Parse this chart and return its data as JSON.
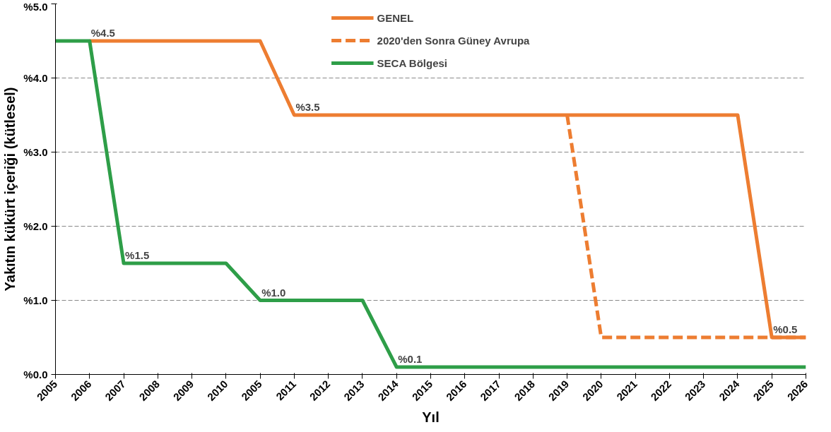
{
  "chart_data": {
    "type": "line",
    "xlabel": "Yıl",
    "ylabel": "Yakıtın kükürt içeriği (kütlesel)",
    "categories": [
      "2005",
      "2006",
      "2007",
      "2008",
      "2009",
      "2010",
      "2005",
      "2011",
      "2012",
      "2013",
      "2014",
      "2015",
      "2016",
      "2017",
      "2018",
      "2019",
      "2020",
      "2021",
      "2022",
      "2023",
      "2024",
      "2025",
      "2026"
    ],
    "ylim": [
      0,
      5
    ],
    "yticks": [
      {
        "value": 0,
        "label": "%0.0"
      },
      {
        "value": 1,
        "label": "%1.0"
      },
      {
        "value": 2,
        "label": "%2.0"
      },
      {
        "value": 3,
        "label": "%3.0"
      },
      {
        "value": 4,
        "label": "%4.0"
      },
      {
        "value": 5,
        "label": "%5.0"
      }
    ],
    "grid": "y",
    "legend": "top",
    "line_style": "solid",
    "series": [
      {
        "name": "GENEL",
        "color": "#ed7d31",
        "values": [
          null,
          4.5,
          4.5,
          4.5,
          4.5,
          4.5,
          4.5,
          3.5,
          3.5,
          3.5,
          3.5,
          3.5,
          3.5,
          3.5,
          3.5,
          3.5,
          3.5,
          3.5,
          3.5,
          3.5,
          3.5,
          0.5,
          0.5
        ]
      },
      {
        "name": "2020'den Sonra Güney Avrupa",
        "color": "#ed7d31",
        "line_style": "dashed",
        "values": [
          null,
          null,
          null,
          null,
          null,
          null,
          null,
          null,
          null,
          null,
          null,
          null,
          null,
          null,
          null,
          3.5,
          0.5,
          0.5,
          0.5,
          0.5,
          0.5,
          0.5,
          0.5
        ]
      },
      {
        "name": "SECA Bölgesi",
        "color": "#2e9e48",
        "values": [
          4.5,
          4.5,
          1.5,
          1.5,
          1.5,
          1.5,
          1.0,
          1.0,
          1.0,
          1.0,
          0.1,
          0.1,
          0.1,
          0.1,
          0.1,
          0.1,
          0.1,
          0.1,
          0.1,
          0.1,
          0.1,
          0.1,
          0.1
        ]
      }
    ],
    "annotations": [
      {
        "text": "%4.5",
        "x": "2006",
        "y": 4.5
      },
      {
        "text": "%1.5",
        "x": "2007",
        "y": 1.5
      },
      {
        "text": "%1.0",
        "y": 1.0
      },
      {
        "text": "%0.1",
        "x": "2014",
        "y": 0.1
      },
      {
        "text": "%3.5",
        "x": "2011",
        "y": 3.5
      },
      {
        "text": "%0.5",
        "x": "2025",
        "y": 0.5
      }
    ]
  }
}
